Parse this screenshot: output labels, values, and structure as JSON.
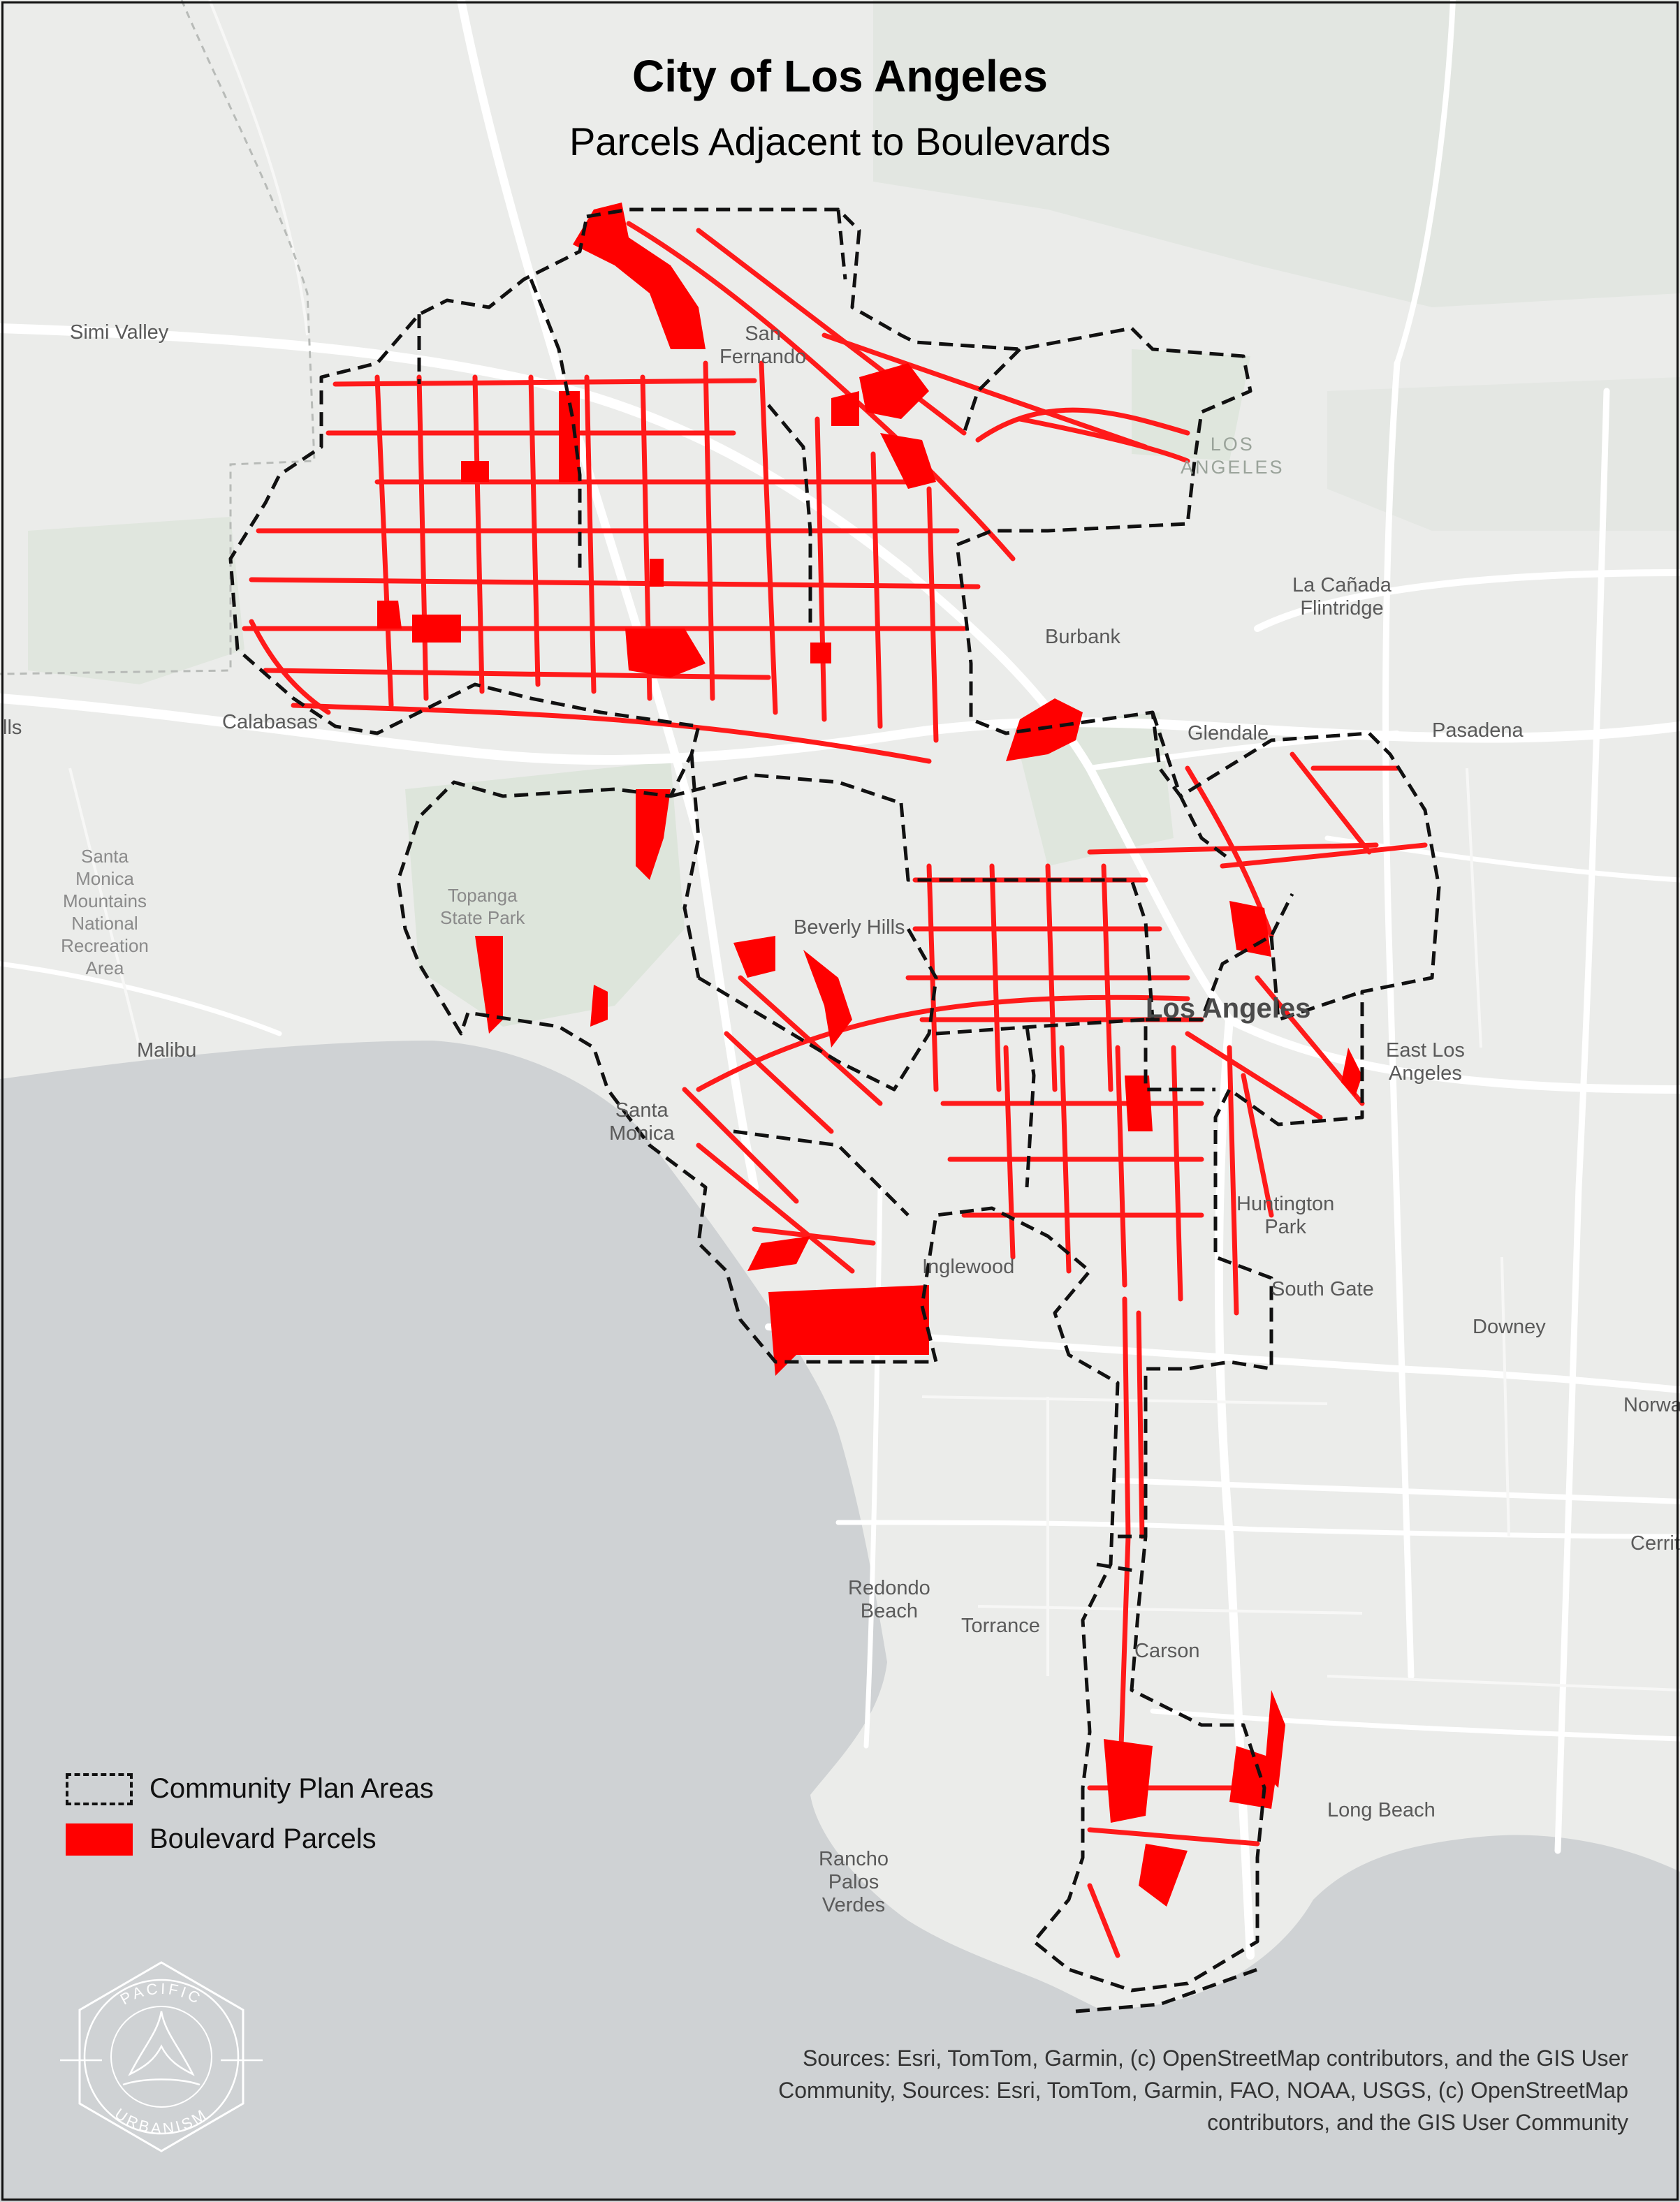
{
  "map": {
    "title": "City of Los Angeles",
    "subtitle": "Parcels Adjacent to Boulevards",
    "colors": {
      "land": "#ebecea",
      "ocean": "#cfd2d4",
      "park": "#dde5db",
      "roads": "#ffffff",
      "parcel_fill": "#ff0000",
      "plan_boundary": "#111111"
    },
    "places": [
      {
        "id": "simi-valley",
        "label": "Simi Valley"
      },
      {
        "id": "san-fernando",
        "label": "San\nFernando"
      },
      {
        "id": "los-angeles-county",
        "label": "LOS\nANGELES"
      },
      {
        "id": "la-canada-flintridge",
        "label": "La Cañada\nFlintridge"
      },
      {
        "id": "burbank",
        "label": "Burbank"
      },
      {
        "id": "glendale",
        "label": "Glendale"
      },
      {
        "id": "pasadena",
        "label": "Pasadena"
      },
      {
        "id": "calabasas",
        "label": "Calabasas"
      },
      {
        "id": "hills",
        "label": "lls"
      },
      {
        "id": "santa-monica-mountains",
        "label": "Santa\nMonica\nMountains\nNational\nRecreation\nArea"
      },
      {
        "id": "topanga-state-park",
        "label": "Topanga\nState Park"
      },
      {
        "id": "beverly-hills",
        "label": "Beverly Hills"
      },
      {
        "id": "los-angeles",
        "label": "Los Angeles"
      },
      {
        "id": "east-los-angeles",
        "label": "East Los\nAngeles"
      },
      {
        "id": "malibu",
        "label": "Malibu"
      },
      {
        "id": "santa-monica",
        "label": "Santa\nMonica"
      },
      {
        "id": "huntington-park",
        "label": "Huntington\nPark"
      },
      {
        "id": "inglewood",
        "label": "Inglewood"
      },
      {
        "id": "south-gate",
        "label": "South Gate"
      },
      {
        "id": "downey",
        "label": "Downey"
      },
      {
        "id": "norwalk",
        "label": "Norwa"
      },
      {
        "id": "cerritos",
        "label": "Cerrit"
      },
      {
        "id": "redondo-beach",
        "label": "Redondo\nBeach"
      },
      {
        "id": "torrance",
        "label": "Torrance"
      },
      {
        "id": "carson",
        "label": "Carson"
      },
      {
        "id": "long-beach",
        "label": "Long Beach"
      },
      {
        "id": "rancho-palos-verdes",
        "label": "Rancho\nPalos\nVerdes"
      }
    ]
  },
  "legend": {
    "items": [
      {
        "label": "Community Plan Areas",
        "symbol": "dashed-outline"
      },
      {
        "label": "Boulevard Parcels",
        "symbol": "solid-red"
      }
    ]
  },
  "sources": {
    "text": "Sources:  Esri, TomTom, Garmin, (c) OpenStreetMap contributors, and the GIS User Community, Sources:  Esri, TomTom, Garmin, FAO, NOAA, USGS, (c) OpenStreetMap contributors, and the GIS User Community"
  },
  "logo": {
    "icon": "pacific-urbanism-logo-icon",
    "text_top": "PACIFIC",
    "text_bottom": "URBANISM"
  }
}
